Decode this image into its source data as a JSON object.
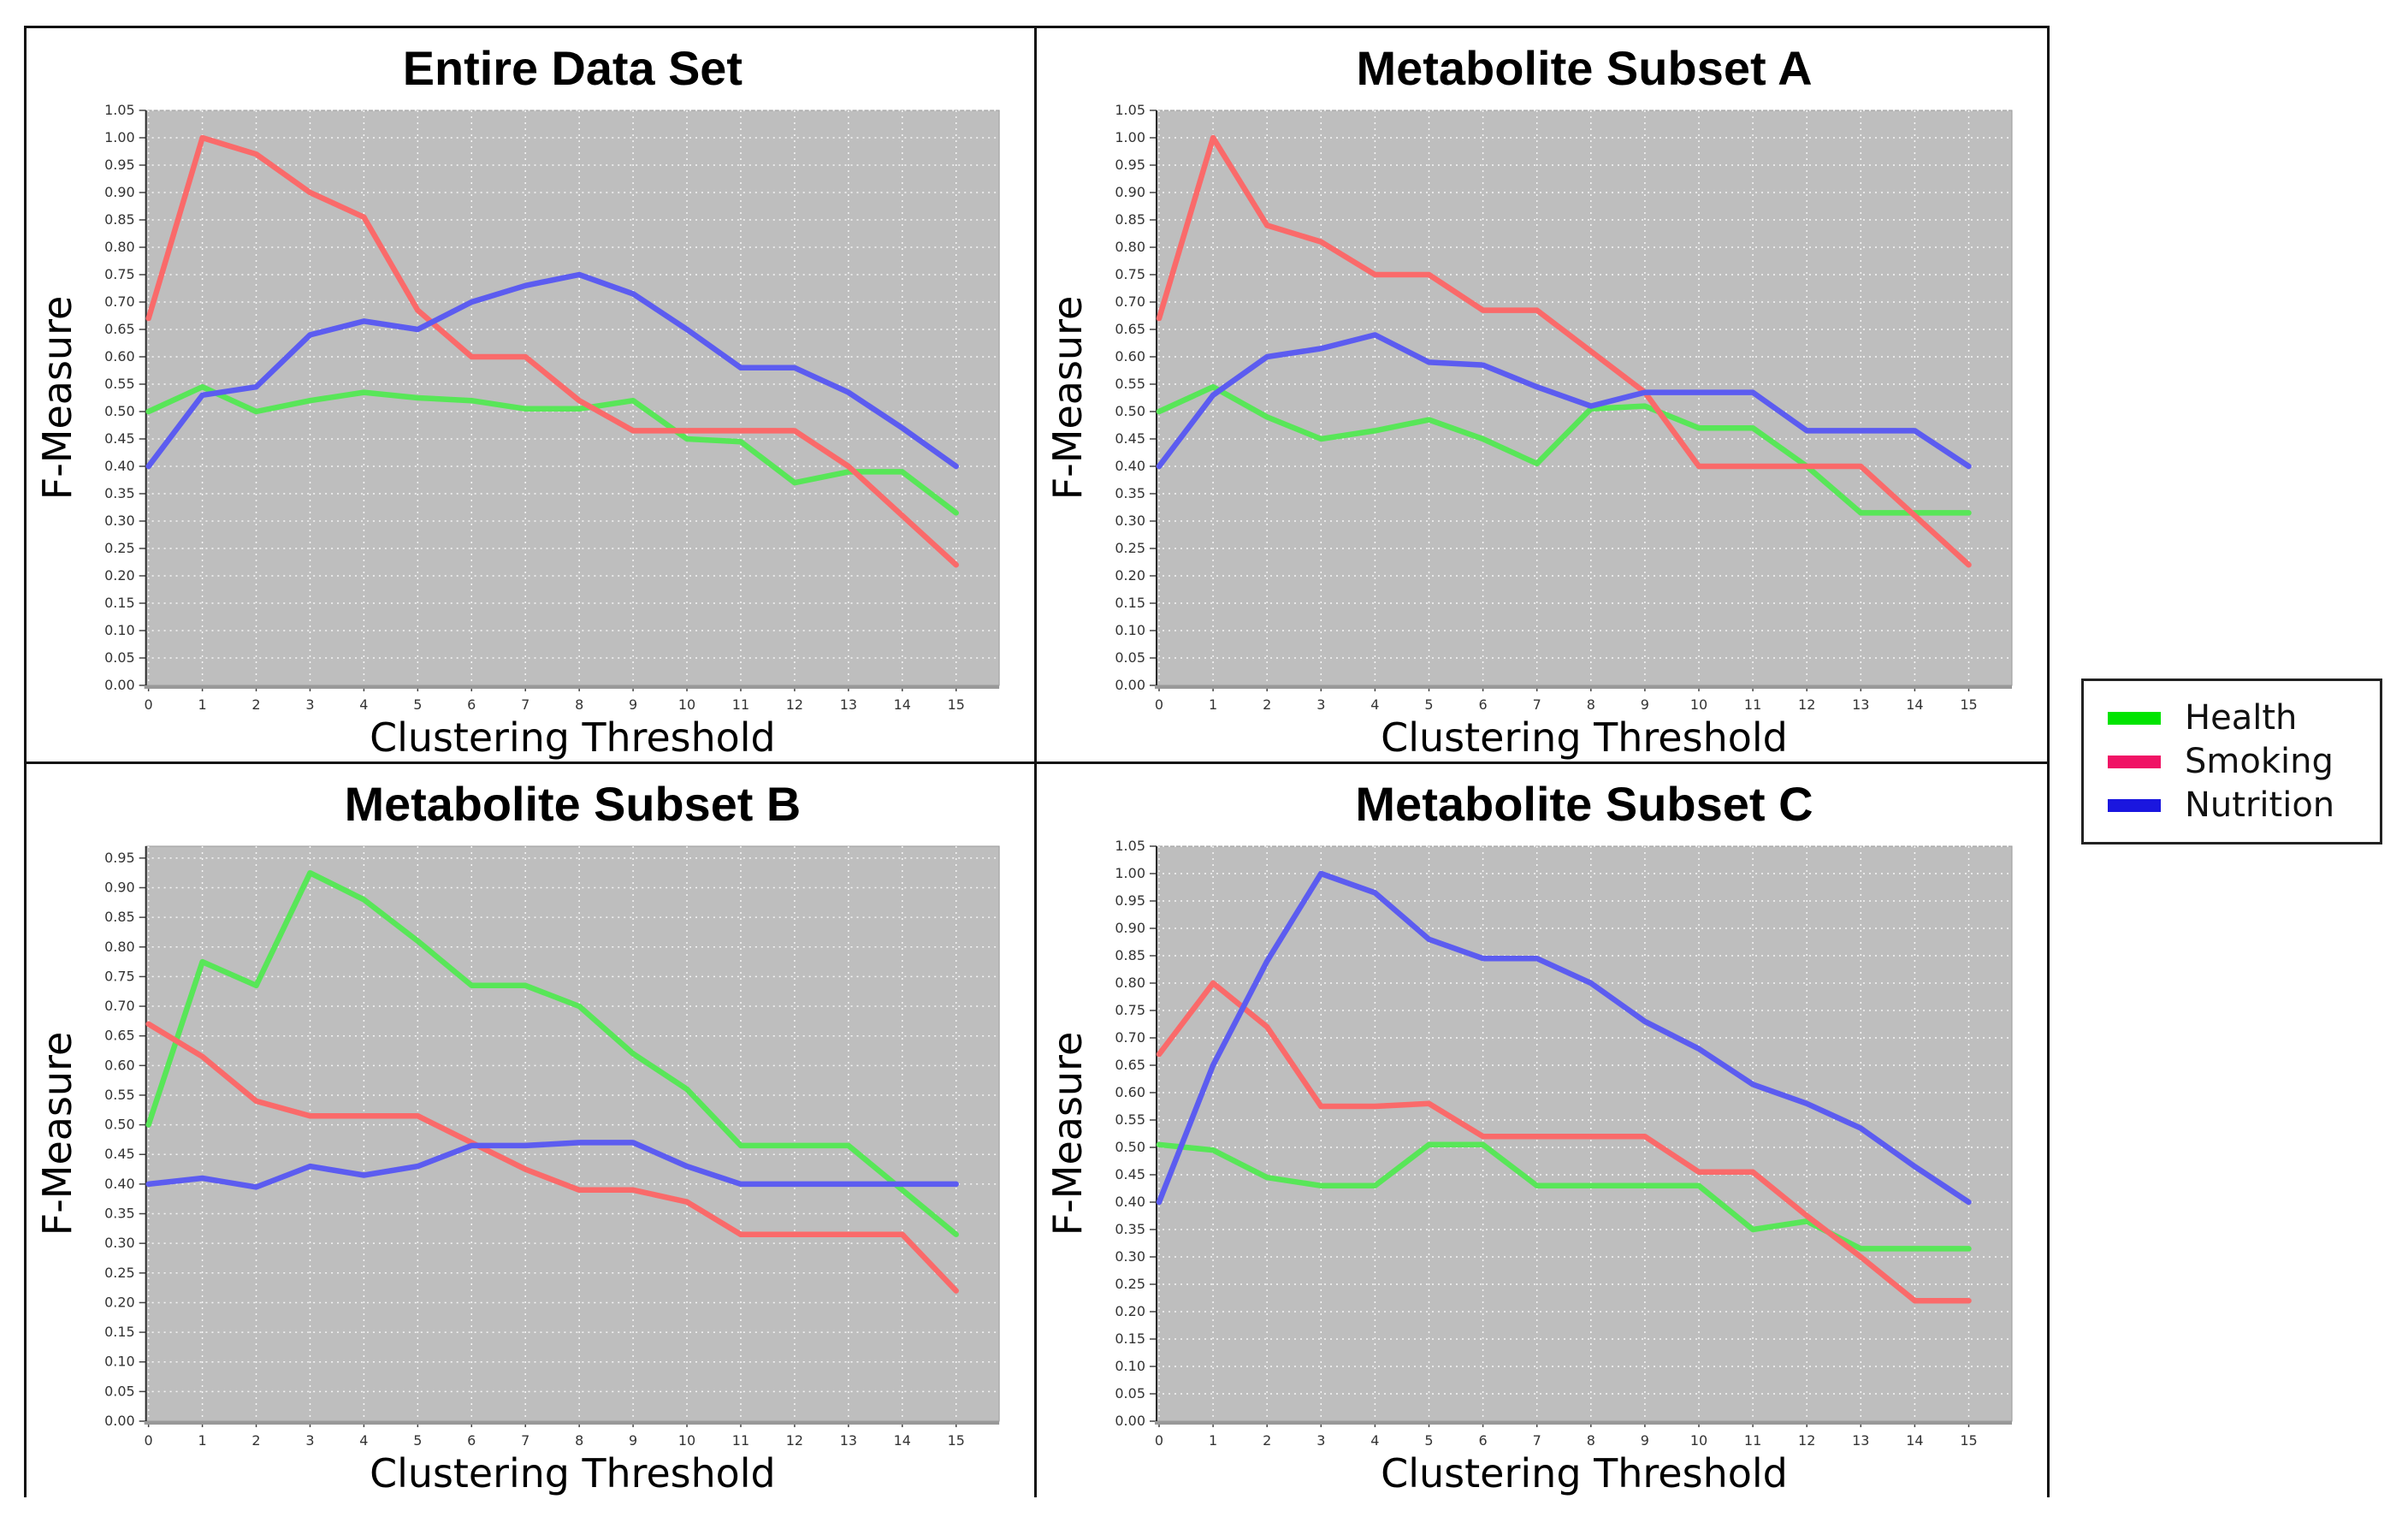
{
  "legend": {
    "items": [
      {
        "label": "Health",
        "swatch_color": "#00E400"
      },
      {
        "label": "Smoking",
        "swatch_color": "#F01365"
      },
      {
        "label": "Nutrition",
        "swatch_color": "#1A16DF"
      }
    ]
  },
  "style": {
    "plot_background": "#BEBEBE",
    "gridline_color": "#FFFFFF",
    "tick_label_color": "#333333",
    "spine_color": "#444444",
    "bottom_spine_color": "#999999"
  },
  "chart_data": [
    {
      "id": "entire",
      "type": "line",
      "title": "Entire Data Set",
      "xlabel": "Clustering Threshold",
      "ylabel": "F-Measure",
      "x": [
        0,
        1,
        2,
        3,
        4,
        5,
        6,
        7,
        8,
        9,
        10,
        11,
        12,
        13,
        14,
        15
      ],
      "ylim": [
        0,
        1.05
      ],
      "ytick_step": 0.05,
      "ytick_max": 1.05,
      "grid": true,
      "legend_position": "outside-right",
      "series": [
        {
          "name": "Health",
          "color": "#58E658",
          "values": [
            0.5,
            0.545,
            0.5,
            0.52,
            0.535,
            0.525,
            0.52,
            0.505,
            0.505,
            0.52,
            0.45,
            0.445,
            0.37,
            0.39,
            0.39,
            0.315
          ]
        },
        {
          "name": "Smoking",
          "color": "#FA6A6A",
          "values": [
            0.67,
            1.0,
            0.97,
            0.9,
            0.855,
            0.685,
            0.6,
            0.6,
            0.52,
            0.465,
            0.465,
            0.465,
            0.465,
            0.4,
            0.31,
            0.22
          ]
        },
        {
          "name": "Nutrition",
          "color": "#5C5CF0",
          "values": [
            0.4,
            0.53,
            0.545,
            0.64,
            0.665,
            0.65,
            0.7,
            0.73,
            0.75,
            0.715,
            0.65,
            0.58,
            0.58,
            0.535,
            0.47,
            0.4
          ]
        }
      ]
    },
    {
      "id": "subset-a",
      "type": "line",
      "title": "Metabolite Subset A",
      "xlabel": "Clustering Threshold",
      "ylabel": "F-Measure",
      "x": [
        0,
        1,
        2,
        3,
        4,
        5,
        6,
        7,
        8,
        9,
        10,
        11,
        12,
        13,
        14,
        15
      ],
      "ylim": [
        0,
        1.05
      ],
      "ytick_step": 0.05,
      "ytick_max": 1.05,
      "grid": true,
      "legend_position": "outside-right",
      "series": [
        {
          "name": "Health",
          "color": "#58E658",
          "values": [
            0.5,
            0.545,
            0.49,
            0.45,
            0.465,
            0.485,
            0.45,
            0.405,
            0.505,
            0.51,
            0.47,
            0.47,
            0.4,
            0.315,
            0.315,
            0.315
          ]
        },
        {
          "name": "Smoking",
          "color": "#FA6A6A",
          "values": [
            0.67,
            1.0,
            0.84,
            0.81,
            0.75,
            0.75,
            0.685,
            0.685,
            0.61,
            0.535,
            0.4,
            0.4,
            0.4,
            0.4,
            0.31,
            0.22
          ]
        },
        {
          "name": "Nutrition",
          "color": "#5C5CF0",
          "values": [
            0.4,
            0.53,
            0.6,
            0.615,
            0.64,
            0.59,
            0.585,
            0.545,
            0.51,
            0.535,
            0.535,
            0.535,
            0.465,
            0.465,
            0.465,
            0.4
          ]
        }
      ]
    },
    {
      "id": "subset-b",
      "type": "line",
      "title": "Metabolite Subset B",
      "xlabel": "Clustering Threshold",
      "ylabel": "F-Measure",
      "x": [
        0,
        1,
        2,
        3,
        4,
        5,
        6,
        7,
        8,
        9,
        10,
        11,
        12,
        13,
        14,
        15
      ],
      "ylim": [
        0,
        0.97
      ],
      "ytick_step": 0.05,
      "ytick_max": 0.95,
      "grid": true,
      "legend_position": "outside-right",
      "series": [
        {
          "name": "Health",
          "color": "#58E658",
          "values": [
            0.5,
            0.775,
            0.735,
            0.925,
            0.88,
            0.81,
            0.735,
            0.735,
            0.7,
            0.62,
            0.56,
            0.465,
            0.465,
            0.465,
            0.39,
            0.315
          ]
        },
        {
          "name": "Smoking",
          "color": "#FA6A6A",
          "values": [
            0.67,
            0.615,
            0.54,
            0.515,
            0.515,
            0.515,
            0.47,
            0.425,
            0.39,
            0.39,
            0.37,
            0.315,
            0.315,
            0.315,
            0.315,
            0.22
          ]
        },
        {
          "name": "Nutrition",
          "color": "#5C5CF0",
          "values": [
            0.4,
            0.41,
            0.395,
            0.43,
            0.415,
            0.43,
            0.465,
            0.465,
            0.47,
            0.47,
            0.43,
            0.4,
            0.4,
            0.4,
            0.4,
            0.4
          ]
        }
      ]
    },
    {
      "id": "subset-c",
      "type": "line",
      "title": "Metabolite Subset C",
      "xlabel": "Clustering Threshold",
      "ylabel": "F-Measure",
      "x": [
        0,
        1,
        2,
        3,
        4,
        5,
        6,
        7,
        8,
        9,
        10,
        11,
        12,
        13,
        14,
        15
      ],
      "ylim": [
        0,
        1.05
      ],
      "ytick_step": 0.05,
      "ytick_max": 1.05,
      "grid": true,
      "legend_position": "outside-right",
      "series": [
        {
          "name": "Health",
          "color": "#58E658",
          "values": [
            0.505,
            0.495,
            0.445,
            0.43,
            0.43,
            0.505,
            0.505,
            0.43,
            0.43,
            0.43,
            0.43,
            0.35,
            0.365,
            0.315,
            0.315,
            0.315
          ]
        },
        {
          "name": "Smoking",
          "color": "#FA6A6A",
          "values": [
            0.67,
            0.8,
            0.72,
            0.575,
            0.575,
            0.58,
            0.52,
            0.52,
            0.52,
            0.52,
            0.455,
            0.455,
            0.375,
            0.3,
            0.22,
            0.22
          ]
        },
        {
          "name": "Nutrition",
          "color": "#5C5CF0",
          "values": [
            0.4,
            0.65,
            0.84,
            1.0,
            0.965,
            0.88,
            0.845,
            0.845,
            0.8,
            0.73,
            0.68,
            0.615,
            0.58,
            0.535,
            0.465,
            0.4
          ]
        }
      ]
    }
  ]
}
